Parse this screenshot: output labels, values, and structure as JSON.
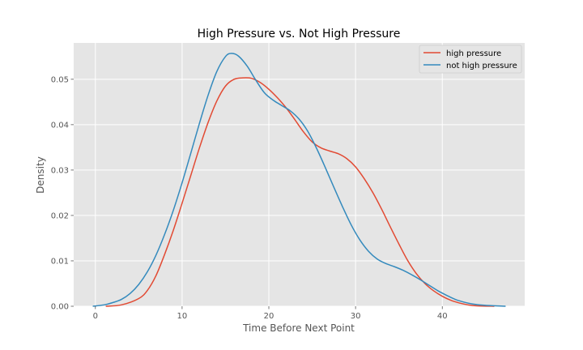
{
  "chart_data": {
    "type": "line",
    "title": "High Pressure vs. Not High Pressure",
    "xlabel": "Time Before Next Point",
    "ylabel": "Density",
    "xlim": [
      -2.5,
      49.5
    ],
    "ylim": [
      0,
      0.058
    ],
    "xticks": [
      0,
      10,
      20,
      30,
      40
    ],
    "yticks": [
      0.0,
      0.01,
      0.02,
      0.03,
      0.04,
      0.05
    ],
    "ytick_labels": [
      "0.00",
      "0.01",
      "0.02",
      "0.03",
      "0.04",
      "0.05"
    ],
    "xtick_labels": [
      "0",
      "10",
      "20",
      "30",
      "40"
    ],
    "grid": true,
    "legend_position": "top-right",
    "background": "#e5e5e5",
    "series": [
      {
        "name": "high pressure",
        "color": "#e24a33",
        "points": [
          [
            1.2,
            0.0
          ],
          [
            3,
            0.0003
          ],
          [
            5,
            0.0017
          ],
          [
            6,
            0.0035
          ],
          [
            7,
            0.0068
          ],
          [
            8,
            0.0115
          ],
          [
            9,
            0.0168
          ],
          [
            10,
            0.0227
          ],
          [
            11,
            0.0288
          ],
          [
            12,
            0.0349
          ],
          [
            13,
            0.0405
          ],
          [
            14,
            0.0452
          ],
          [
            15,
            0.0485
          ],
          [
            16,
            0.05
          ],
          [
            17,
            0.0503
          ],
          [
            18,
            0.0502
          ],
          [
            19,
            0.0493
          ],
          [
            20,
            0.0478
          ],
          [
            21,
            0.0459
          ],
          [
            22,
            0.0437
          ],
          [
            23,
            0.0411
          ],
          [
            24,
            0.0384
          ],
          [
            25,
            0.0362
          ],
          [
            26,
            0.0349
          ],
          [
            27,
            0.0342
          ],
          [
            28,
            0.0336
          ],
          [
            29,
            0.0325
          ],
          [
            30,
            0.0307
          ],
          [
            31,
            0.0281
          ],
          [
            32,
            0.025
          ],
          [
            33,
            0.0214
          ],
          [
            34,
            0.0175
          ],
          [
            35,
            0.0137
          ],
          [
            36,
            0.0101
          ],
          [
            37,
            0.0072
          ],
          [
            38,
            0.005
          ],
          [
            39,
            0.0034
          ],
          [
            40,
            0.0022
          ],
          [
            41,
            0.0013
          ],
          [
            42,
            0.0007
          ],
          [
            43,
            0.0003
          ],
          [
            44,
            0.0001
          ],
          [
            46,
            0.0
          ]
        ]
      },
      {
        "name": "not high pressure",
        "color": "#348abd",
        "points": [
          [
            -0.3,
            0.0
          ],
          [
            1,
            0.0003
          ],
          [
            2,
            0.0008
          ],
          [
            3,
            0.0015
          ],
          [
            4,
            0.0028
          ],
          [
            5,
            0.0048
          ],
          [
            6,
            0.0076
          ],
          [
            7,
            0.0113
          ],
          [
            8,
            0.0159
          ],
          [
            9,
            0.0212
          ],
          [
            10,
            0.0272
          ],
          [
            11,
            0.0337
          ],
          [
            12,
            0.0403
          ],
          [
            13,
            0.0465
          ],
          [
            14,
            0.0517
          ],
          [
            15,
            0.055
          ],
          [
            15.7,
            0.0557
          ],
          [
            16.5,
            0.0551
          ],
          [
            17.5,
            0.0529
          ],
          [
            18.5,
            0.0498
          ],
          [
            19.5,
            0.047
          ],
          [
            20.5,
            0.0454
          ],
          [
            21.5,
            0.0442
          ],
          [
            22.5,
            0.043
          ],
          [
            23.5,
            0.0412
          ],
          [
            24.5,
            0.0385
          ],
          [
            25.5,
            0.0348
          ],
          [
            26.5,
            0.0306
          ],
          [
            27.5,
            0.0262
          ],
          [
            28.5,
            0.0219
          ],
          [
            29.5,
            0.0179
          ],
          [
            30.5,
            0.0146
          ],
          [
            31.5,
            0.0121
          ],
          [
            32.5,
            0.0104
          ],
          [
            33.5,
            0.0094
          ],
          [
            34.5,
            0.0087
          ],
          [
            35.5,
            0.0079
          ],
          [
            36.5,
            0.0069
          ],
          [
            37.5,
            0.0058
          ],
          [
            38.5,
            0.0046
          ],
          [
            39.5,
            0.0034
          ],
          [
            40.5,
            0.0024
          ],
          [
            41.5,
            0.0015
          ],
          [
            42.5,
            0.0009
          ],
          [
            43.5,
            0.0005
          ],
          [
            45,
            0.0002
          ],
          [
            47.3,
            0.0
          ]
        ]
      }
    ]
  }
}
